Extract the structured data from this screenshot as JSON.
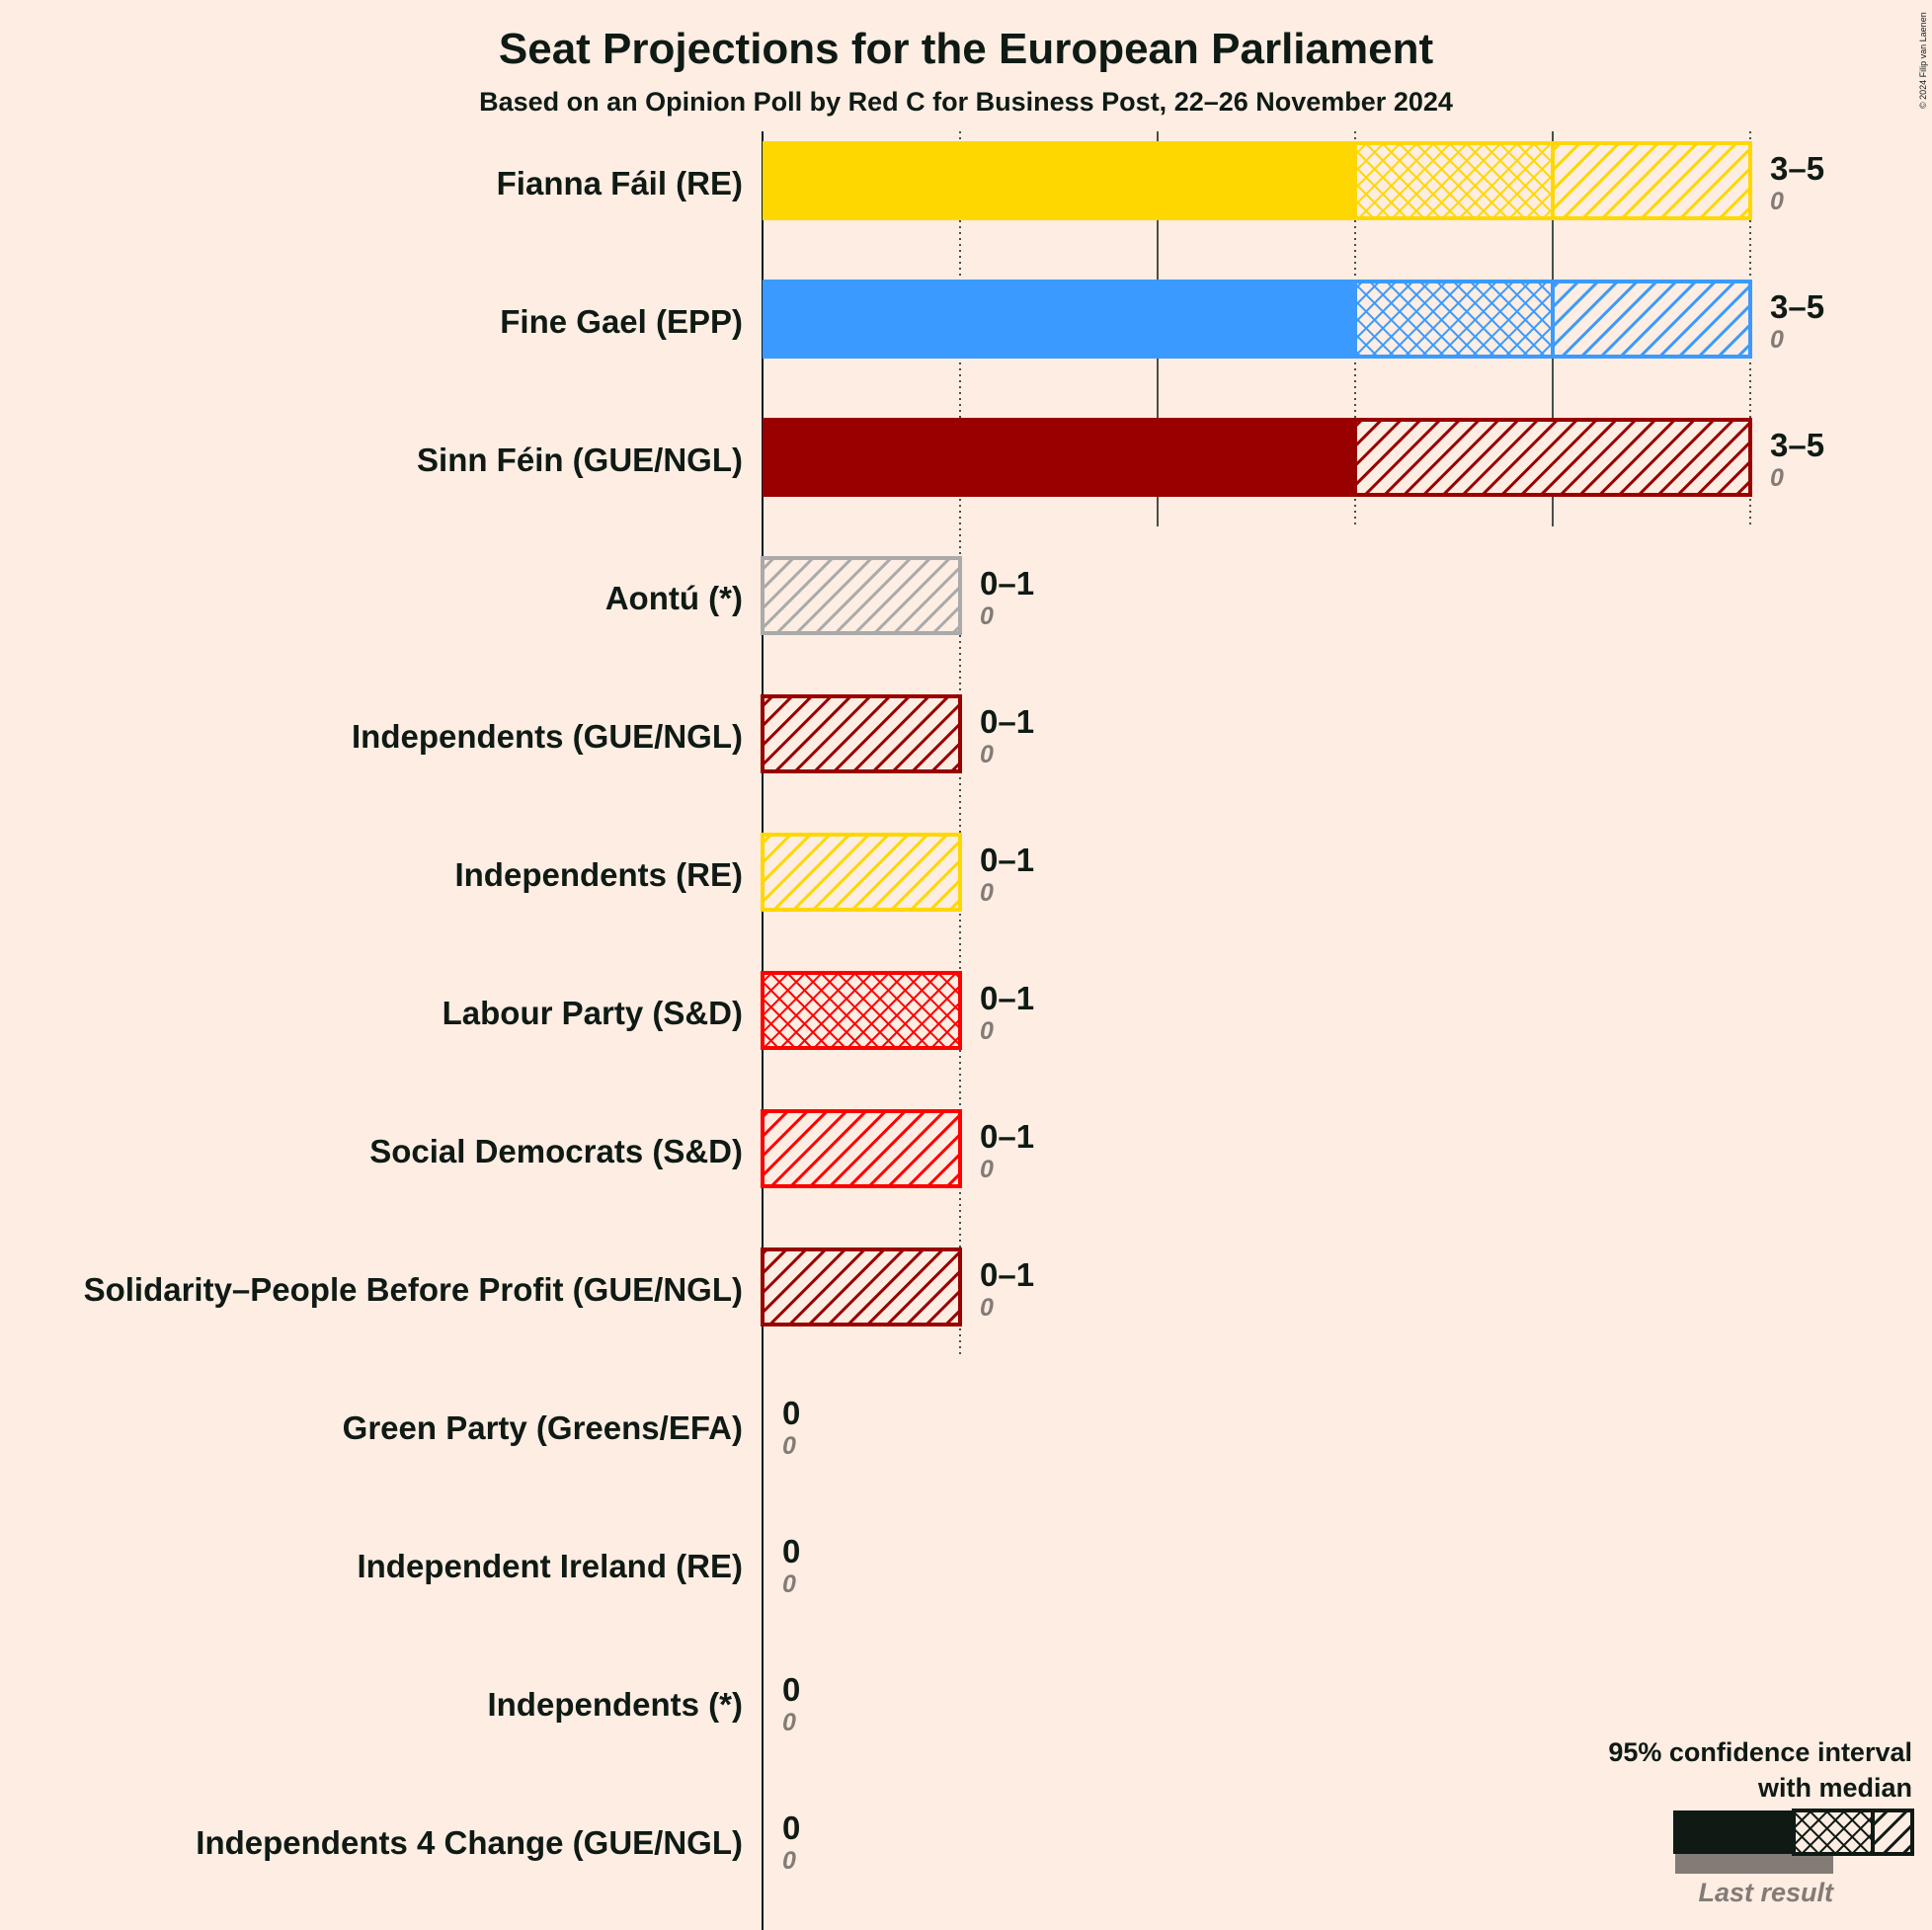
{
  "copyright": "© 2024 Filip van Laenen",
  "chart_data": {
    "type": "bar",
    "title": "Seat Projections for the European Parliament",
    "subtitle": "Based on an Opinion Poll by Red C for Business Post, 22–26 November 2024",
    "xlim": [
      0,
      5
    ],
    "grid": true,
    "legend_position": "bottom-right",
    "parties": [
      {
        "name": "Fianna Fáil (RE)",
        "color": "#FFD700",
        "low": 3,
        "median": 4,
        "high": 5,
        "label": "3–5",
        "last_result": 0,
        "last_label": "0"
      },
      {
        "name": "Fine Gael (EPP)",
        "color": "#3B9AFF",
        "low": 3,
        "median": 4,
        "high": 5,
        "label": "3–5",
        "last_result": 0,
        "last_label": "0"
      },
      {
        "name": "Sinn Féin (GUE/NGL)",
        "color": "#990000",
        "low": 3,
        "median": 3,
        "high": 5,
        "label": "3–5",
        "last_result": 0,
        "last_label": "0"
      },
      {
        "name": "Aontú (*)",
        "color": "#AAAAAA",
        "low": 0,
        "median": 0,
        "high": 1,
        "label": "0–1",
        "last_result": 0,
        "last_label": "0"
      },
      {
        "name": "Independents (GUE/NGL)",
        "color": "#990000",
        "low": 0,
        "median": 0,
        "high": 1,
        "label": "0–1",
        "last_result": 0,
        "last_label": "0"
      },
      {
        "name": "Independents (RE)",
        "color": "#FFD700",
        "low": 0,
        "median": 0,
        "high": 1,
        "label": "0–1",
        "last_result": 0,
        "last_label": "0"
      },
      {
        "name": "Labour Party (S&D)",
        "color": "#FF0000",
        "low": 0,
        "median": 1,
        "high": 1,
        "label": "0–1",
        "last_result": 0,
        "last_label": "0"
      },
      {
        "name": "Social Democrats (S&D)",
        "color": "#FF0000",
        "low": 0,
        "median": 0,
        "high": 1,
        "label": "0–1",
        "last_result": 0,
        "last_label": "0"
      },
      {
        "name": "Solidarity–People Before Profit (GUE/NGL)",
        "color": "#990000",
        "low": 0,
        "median": 0,
        "high": 1,
        "label": "0–1",
        "last_result": 0,
        "last_label": "0"
      },
      {
        "name": "Green Party (Greens/EFA)",
        "color": "#00A000",
        "low": 0,
        "median": 0,
        "high": 0,
        "label": "0",
        "last_result": 0,
        "last_label": "0"
      },
      {
        "name": "Independent Ireland (RE)",
        "color": "#FFD700",
        "low": 0,
        "median": 0,
        "high": 0,
        "label": "0",
        "last_result": 0,
        "last_label": "0"
      },
      {
        "name": "Independents (*)",
        "color": "#AAAAAA",
        "low": 0,
        "median": 0,
        "high": 0,
        "label": "0",
        "last_result": 0,
        "last_label": "0"
      },
      {
        "name": "Independents 4 Change (GUE/NGL)",
        "color": "#990000",
        "low": 0,
        "median": 0,
        "high": 0,
        "label": "0",
        "last_result": 0,
        "last_label": "0"
      }
    ],
    "legend": {
      "line1": "95% confidence interval",
      "line2": "with median",
      "last_result_label": "Last result"
    }
  }
}
